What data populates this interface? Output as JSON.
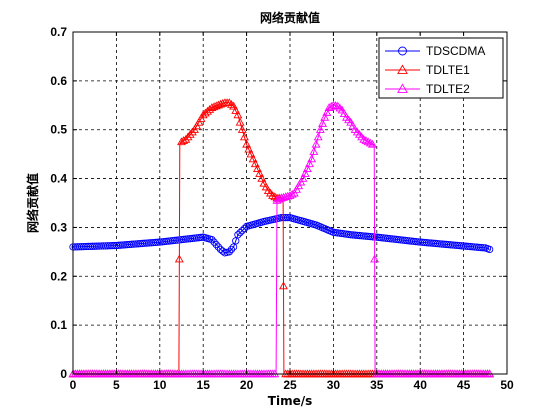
{
  "chart_data": {
    "type": "line",
    "title": "网络贡献值",
    "xlabel": "Time/s",
    "ylabel": "网络贡献值",
    "xlim": [
      0,
      50
    ],
    "ylim": [
      0,
      0.7
    ],
    "xticks": [
      "0",
      "5",
      "10",
      "15",
      "20",
      "25",
      "30",
      "35",
      "40",
      "45",
      "50"
    ],
    "yticks": [
      "0",
      "0.1",
      "0.2",
      "0.3",
      "0.4",
      "0.5",
      "0.6",
      "0.7"
    ],
    "grid": true,
    "legend_position": "top-right",
    "series": [
      {
        "name": "TDSCDMA",
        "color": "#0000ff",
        "marker": "circle",
        "x": [
          0,
          5,
          10,
          12.5,
          15,
          16,
          17,
          17.5,
          18,
          18.5,
          19,
          20,
          22,
          24,
          25,
          26,
          28,
          30,
          32,
          35,
          40,
          45,
          47.5,
          48
        ],
        "y": [
          0.26,
          0.263,
          0.27,
          0.275,
          0.28,
          0.275,
          0.255,
          0.248,
          0.25,
          0.26,
          0.285,
          0.302,
          0.312,
          0.32,
          0.32,
          0.315,
          0.305,
          0.29,
          0.285,
          0.28,
          0.27,
          0.262,
          0.258,
          0.255
        ]
      },
      {
        "name": "TDLTE1",
        "color": "#ff0000",
        "marker": "triangle",
        "x": [
          0,
          12.2,
          12.3,
          12.5,
          13,
          13.5,
          14,
          15,
          16,
          17,
          17.5,
          18,
          18.5,
          19,
          19.5,
          20,
          20.5,
          21,
          21.5,
          22,
          22.5,
          23,
          23.5,
          24,
          24.2,
          24.3,
          24.6,
          48
        ],
        "y": [
          0,
          0,
          0.47,
          0.475,
          0.48,
          0.49,
          0.5,
          0.53,
          0.545,
          0.552,
          0.555,
          0.555,
          0.548,
          0.53,
          0.5,
          0.47,
          0.45,
          0.43,
          0.41,
          0.39,
          0.375,
          0.365,
          0.36,
          0.36,
          0.36,
          0.0,
          0,
          0
        ]
      },
      {
        "name": "TDLTE2",
        "color": "#ff00ff",
        "marker": "triangle",
        "x": [
          0,
          23.4,
          23.5,
          24,
          25,
          25.5,
          26,
          26.5,
          27,
          27.5,
          28,
          28.5,
          29,
          29.5,
          30,
          30.5,
          31,
          31.5,
          32,
          32.5,
          33,
          33.5,
          34,
          34.5,
          34.7,
          34.8,
          35,
          48
        ],
        "y": [
          0,
          0,
          0.355,
          0.36,
          0.365,
          0.37,
          0.385,
          0.4,
          0.42,
          0.44,
          0.47,
          0.5,
          0.525,
          0.545,
          0.55,
          0.548,
          0.54,
          0.525,
          0.515,
          0.5,
          0.49,
          0.48,
          0.475,
          0.47,
          0.47,
          0,
          0,
          0
        ]
      }
    ]
  }
}
